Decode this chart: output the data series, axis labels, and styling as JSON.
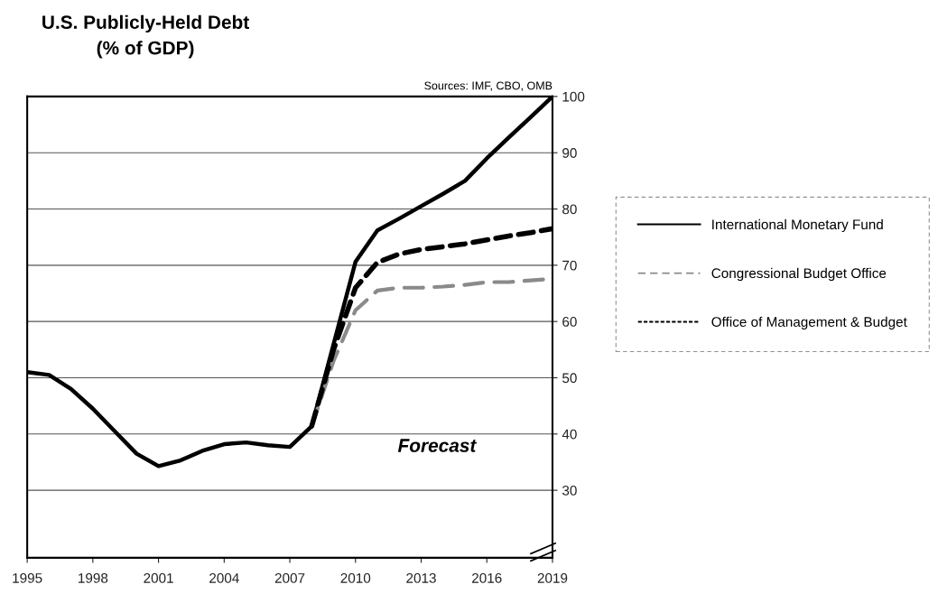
{
  "chart_data": {
    "type": "line",
    "title": "U.S. Publicly-Held Debt\n(% of GDP)",
    "x": [
      1995,
      1996,
      1997,
      1998,
      1999,
      2000,
      2001,
      2002,
      2003,
      2004,
      2005,
      2006,
      2007,
      2008,
      2009,
      2010,
      2011,
      2012,
      2013,
      2014,
      2015,
      2016,
      2017,
      2018,
      2019
    ],
    "series": [
      {
        "name": "International Monetary Fund",
        "color": "#000000",
        "line_style": "solid",
        "values": [
          51,
          50.5,
          48,
          44.5,
          40.5,
          36.5,
          34.3,
          35.3,
          37,
          38.2,
          38.5,
          38,
          37.7,
          41.4,
          56,
          70.6,
          76.2,
          78.3,
          80.5,
          82.7,
          85,
          89,
          92.7,
          96.3,
          100
        ]
      },
      {
        "name": "Congressional Budget Office",
        "color": "#8a8a8a",
        "line_style": "dashed",
        "values": [
          null,
          null,
          null,
          null,
          null,
          null,
          null,
          null,
          null,
          null,
          null,
          null,
          null,
          41.4,
          53,
          62,
          65.5,
          66,
          66,
          66.2,
          66.5,
          67,
          67,
          67.3,
          67.6
        ]
      },
      {
        "name": "Office of Management & Budget",
        "color": "#000000",
        "line_style": "dotted",
        "values": [
          null,
          null,
          null,
          null,
          null,
          null,
          null,
          null,
          null,
          null,
          null,
          null,
          null,
          41.4,
          55,
          66,
          70.5,
          72,
          72.8,
          73.3,
          73.8,
          74.5,
          75.2,
          75.8,
          76.5
        ]
      }
    ],
    "xlim": [
      1995,
      2019
    ],
    "xticks": [
      1995,
      1998,
      2001,
      2004,
      2007,
      2010,
      2013,
      2016,
      2019
    ],
    "ylim": [
      18,
      100
    ],
    "yticks": [
      30,
      40,
      50,
      60,
      70,
      80,
      90,
      100
    ],
    "grid": "y",
    "legend": "right",
    "marker": "none",
    "annotations": [
      "Sources: IMF, CBO, OMB",
      "Forecast"
    ]
  }
}
